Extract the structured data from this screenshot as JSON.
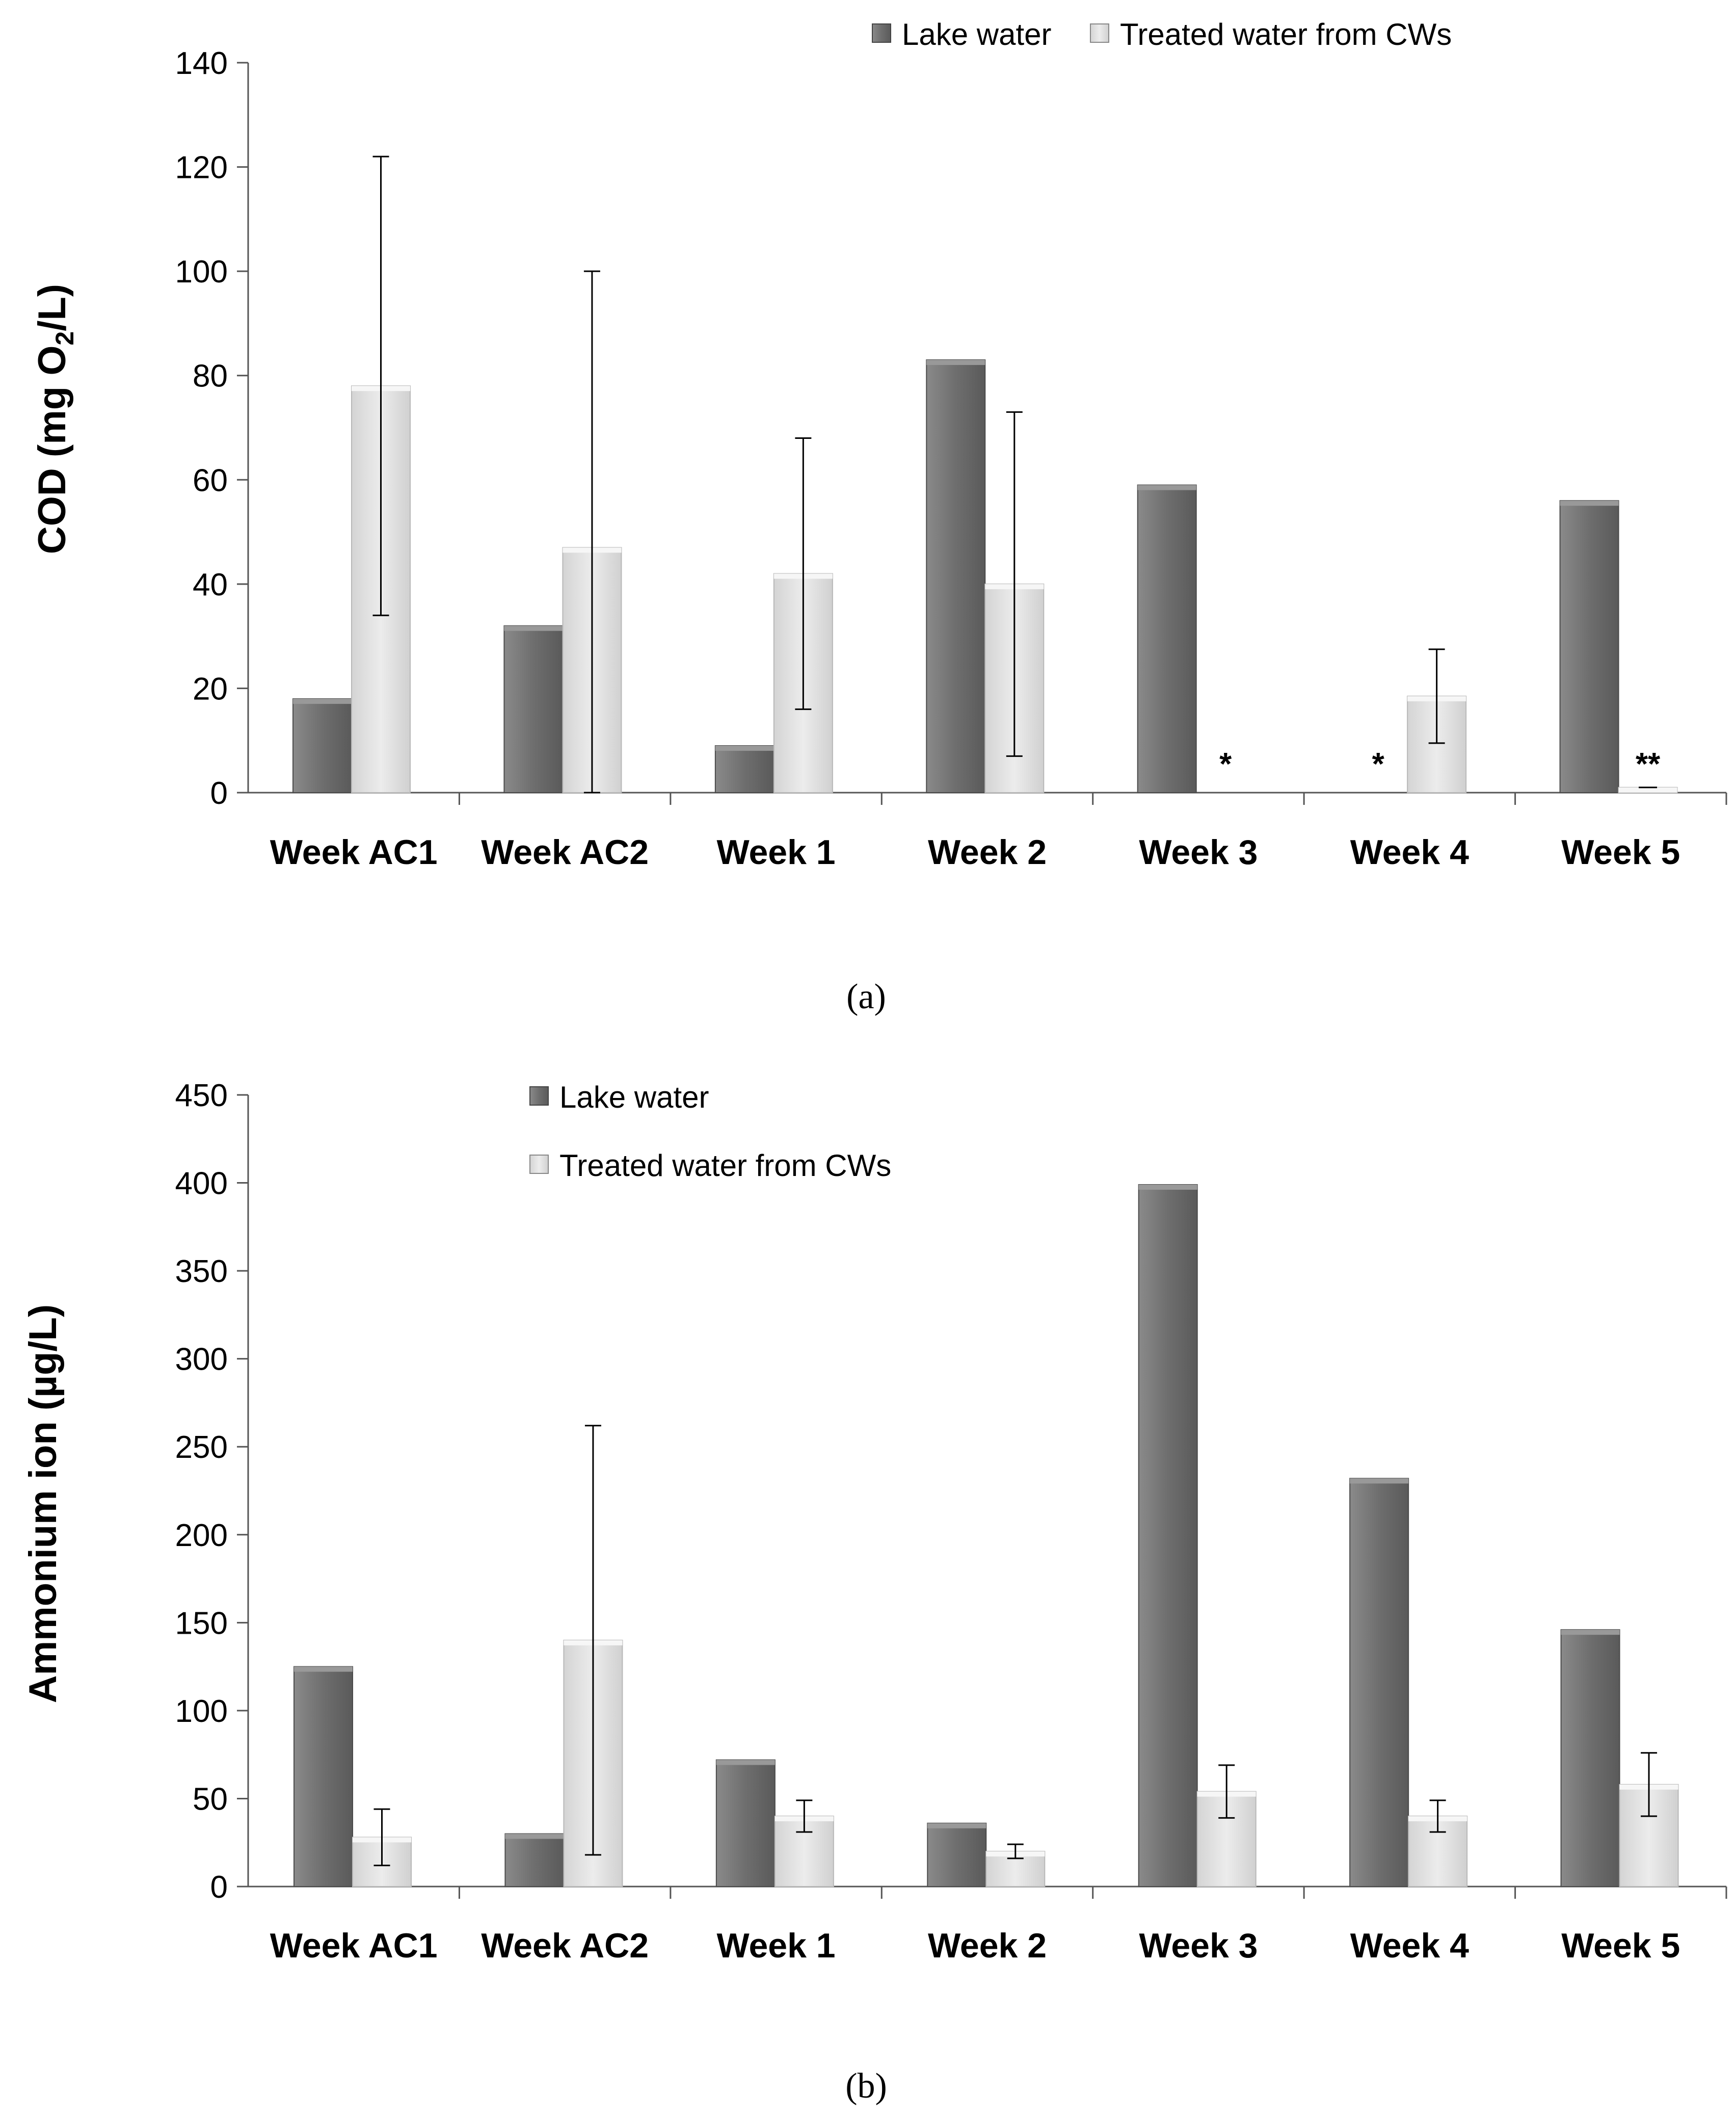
{
  "colors": {
    "lake": "#777777",
    "treated": "#e2e2e2"
  },
  "chart_data": [
    {
      "type": "bar",
      "id": "a",
      "caption": "(a)",
      "ylabel_main": "COD (mg O",
      "ylabel_sub": "2",
      "ylabel_end": "/L)",
      "ylim": [
        0,
        140
      ],
      "yticks": [
        0,
        20,
        40,
        60,
        80,
        100,
        120,
        140
      ],
      "categories": [
        "Week AC1",
        "Week AC2",
        "Week 1",
        "Week 2",
        "Week 3",
        "Week 4",
        "Week 5"
      ],
      "legend_position": "top-right",
      "series": [
        {
          "name": "Lake water",
          "values": [
            18,
            32,
            9,
            83,
            59,
            0,
            56
          ],
          "errors": [
            null,
            null,
            null,
            null,
            null,
            null,
            null
          ],
          "markers": [
            "",
            "",
            "",
            "",
            "",
            "*",
            ""
          ]
        },
        {
          "name": "Treated water from CWs",
          "values": [
            78,
            47,
            42,
            40,
            0,
            18.5,
            1
          ],
          "errors": [
            44,
            53,
            26,
            33,
            null,
            9,
            null
          ],
          "markers": [
            "",
            "",
            "",
            "",
            "*",
            "",
            "**"
          ]
        }
      ]
    },
    {
      "type": "bar",
      "id": "b",
      "caption": "(b)",
      "ylabel_main": "Ammonium ion (µg/L)",
      "ylabel_sub": "",
      "ylabel_end": "",
      "ylim": [
        0,
        450
      ],
      "yticks": [
        0,
        50,
        100,
        150,
        200,
        250,
        300,
        350,
        400,
        450
      ],
      "categories": [
        "Week AC1",
        "Week AC2",
        "Week 1",
        "Week 2",
        "Week 3",
        "Week 4",
        "Week 5"
      ],
      "legend_position": "top-left",
      "series": [
        {
          "name": "Lake water",
          "values": [
            125,
            30,
            72,
            36,
            399,
            232,
            146
          ],
          "errors": [
            null,
            null,
            null,
            null,
            null,
            null,
            null
          ],
          "markers": [
            "",
            "",
            "",
            "",
            "",
            "",
            ""
          ]
        },
        {
          "name": "Treated water from CWs",
          "values": [
            28,
            140,
            40,
            20,
            54,
            40,
            58
          ],
          "errors": [
            16,
            122,
            9,
            4,
            15,
            9,
            18
          ],
          "markers": [
            "",
            "",
            "",
            "",
            "",
            "",
            ""
          ]
        }
      ]
    }
  ]
}
